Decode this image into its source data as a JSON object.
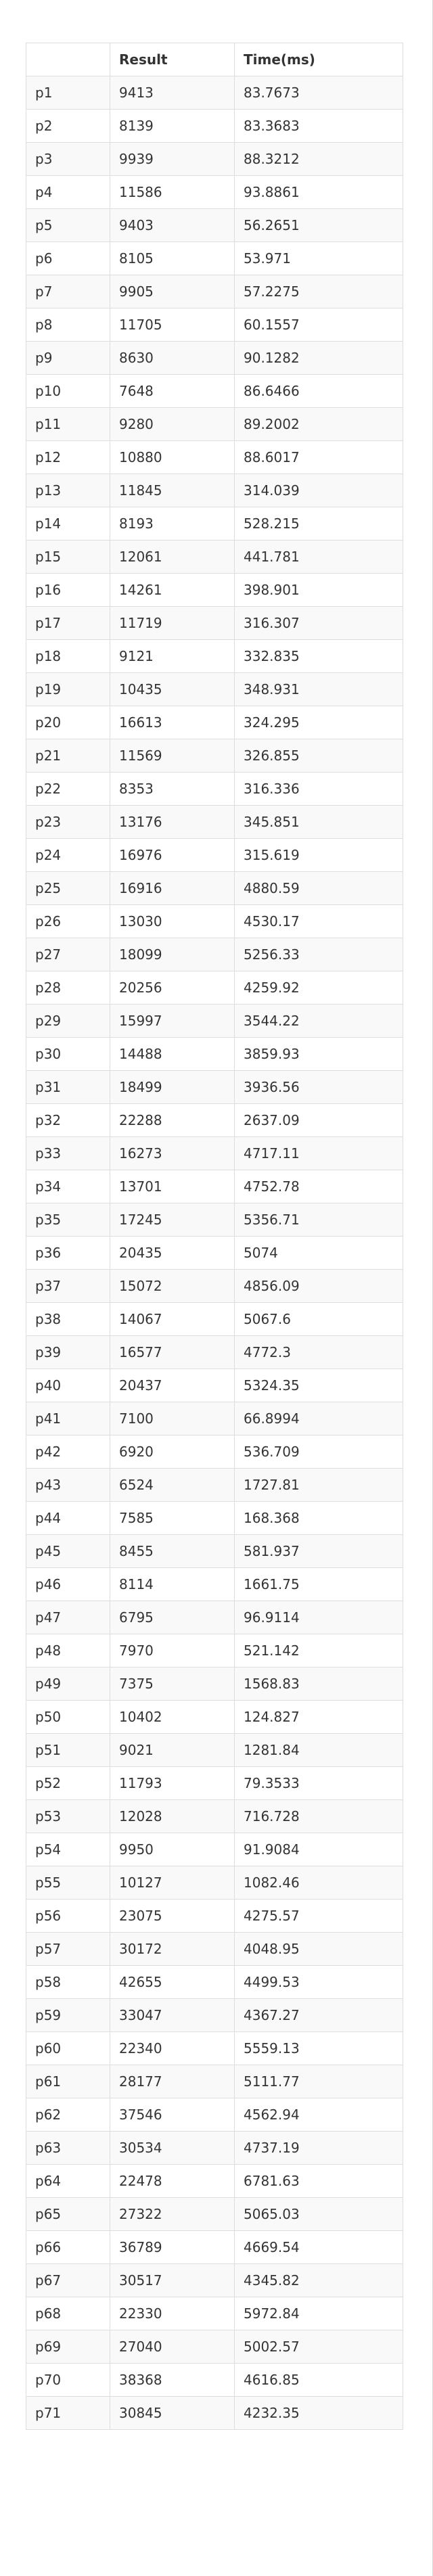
{
  "table": {
    "headers": [
      "",
      "Result",
      "Time(ms)"
    ],
    "rows": [
      [
        "p1",
        "9413",
        "83.7673"
      ],
      [
        "p2",
        "8139",
        "83.3683"
      ],
      [
        "p3",
        "9939",
        "88.3212"
      ],
      [
        "p4",
        "11586",
        "93.8861"
      ],
      [
        "p5",
        "9403",
        "56.2651"
      ],
      [
        "p6",
        "8105",
        "53.971"
      ],
      [
        "p7",
        "9905",
        "57.2275"
      ],
      [
        "p8",
        "11705",
        "60.1557"
      ],
      [
        "p9",
        "8630",
        "90.1282"
      ],
      [
        "p10",
        "7648",
        "86.6466"
      ],
      [
        "p11",
        "9280",
        "89.2002"
      ],
      [
        "p12",
        "10880",
        "88.6017"
      ],
      [
        "p13",
        "11845",
        "314.039"
      ],
      [
        "p14",
        "8193",
        "528.215"
      ],
      [
        "p15",
        "12061",
        "441.781"
      ],
      [
        "p16",
        "14261",
        "398.901"
      ],
      [
        "p17",
        "11719",
        "316.307"
      ],
      [
        "p18",
        "9121",
        "332.835"
      ],
      [
        "p19",
        "10435",
        "348.931"
      ],
      [
        "p20",
        "16613",
        "324.295"
      ],
      [
        "p21",
        "11569",
        "326.855"
      ],
      [
        "p22",
        "8353",
        "316.336"
      ],
      [
        "p23",
        "13176",
        "345.851"
      ],
      [
        "p24",
        "16976",
        "315.619"
      ],
      [
        "p25",
        "16916",
        "4880.59"
      ],
      [
        "p26",
        "13030",
        "4530.17"
      ],
      [
        "p27",
        "18099",
        "5256.33"
      ],
      [
        "p28",
        "20256",
        "4259.92"
      ],
      [
        "p29",
        "15997",
        "3544.22"
      ],
      [
        "p30",
        "14488",
        "3859.93"
      ],
      [
        "p31",
        "18499",
        "3936.56"
      ],
      [
        "p32",
        "22288",
        "2637.09"
      ],
      [
        "p33",
        "16273",
        "4717.11"
      ],
      [
        "p34",
        "13701",
        "4752.78"
      ],
      [
        "p35",
        "17245",
        "5356.71"
      ],
      [
        "p36",
        "20435",
        "5074"
      ],
      [
        "p37",
        "15072",
        "4856.09"
      ],
      [
        "p38",
        "14067",
        "5067.6"
      ],
      [
        "p39",
        "16577",
        "4772.3"
      ],
      [
        "p40",
        "20437",
        "5324.35"
      ],
      [
        "p41",
        "7100",
        "66.8994"
      ],
      [
        "p42",
        "6920",
        "536.709"
      ],
      [
        "p43",
        "6524",
        "1727.81"
      ],
      [
        "p44",
        "7585",
        "168.368"
      ],
      [
        "p45",
        "8455",
        "581.937"
      ],
      [
        "p46",
        "8114",
        "1661.75"
      ],
      [
        "p47",
        "6795",
        "96.9114"
      ],
      [
        "p48",
        "7970",
        "521.142"
      ],
      [
        "p49",
        "7375",
        "1568.83"
      ],
      [
        "p50",
        "10402",
        "124.827"
      ],
      [
        "p51",
        "9021",
        "1281.84"
      ],
      [
        "p52",
        "11793",
        "79.3533"
      ],
      [
        "p53",
        "12028",
        "716.728"
      ],
      [
        "p54",
        "9950",
        "91.9084"
      ],
      [
        "p55",
        "10127",
        "1082.46"
      ],
      [
        "p56",
        "23075",
        "4275.57"
      ],
      [
        "p57",
        "30172",
        "4048.95"
      ],
      [
        "p58",
        "42655",
        "4499.53"
      ],
      [
        "p59",
        "33047",
        "4367.27"
      ],
      [
        "p60",
        "22340",
        "5559.13"
      ],
      [
        "p61",
        "28177",
        "5111.77"
      ],
      [
        "p62",
        "37546",
        "4562.94"
      ],
      [
        "p63",
        "30534",
        "4737.19"
      ],
      [
        "p64",
        "22478",
        "6781.63"
      ],
      [
        "p65",
        "27322",
        "5065.03"
      ],
      [
        "p66",
        "36789",
        "4669.54"
      ],
      [
        "p67",
        "30517",
        "4345.82"
      ],
      [
        "p68",
        "22330",
        "5972.84"
      ],
      [
        "p69",
        "27040",
        "5002.57"
      ],
      [
        "p70",
        "38368",
        "4616.85"
      ],
      [
        "p71",
        "30845",
        "4232.35"
      ]
    ]
  }
}
